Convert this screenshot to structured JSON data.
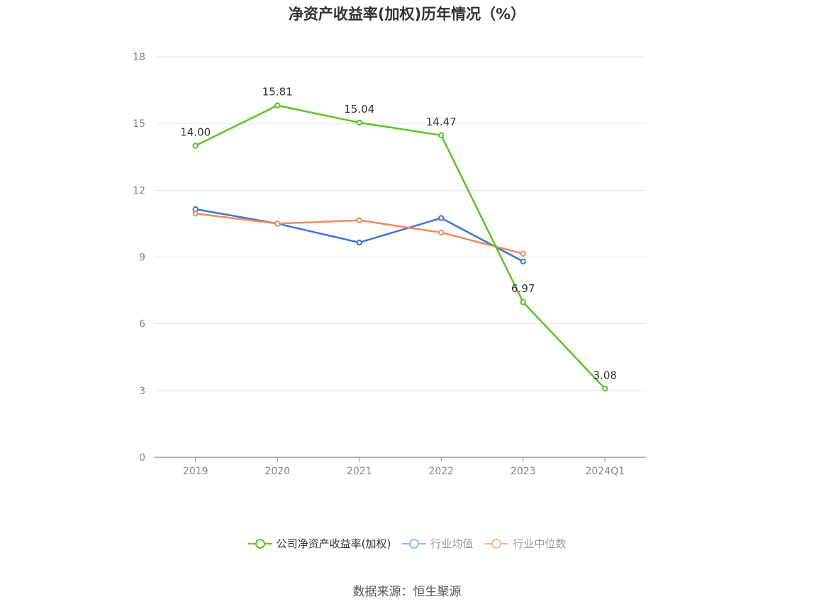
{
  "chart_data": {
    "type": "line",
    "title": "净资产收益率(加权)历年情况（%）",
    "categories": [
      "2019",
      "2020",
      "2021",
      "2022",
      "2023",
      "2024Q1"
    ],
    "ylim": [
      0,
      18
    ],
    "yticks": [
      0,
      3,
      6,
      9,
      12,
      15,
      18
    ],
    "grid": true,
    "legend_position": "bottom",
    "series": [
      {
        "name": "公司净资产收益率(加权)",
        "color": "#5bc226",
        "values": [
          14.0,
          15.81,
          15.04,
          14.47,
          6.97,
          3.08
        ],
        "labels": [
          "14.00",
          "15.81",
          "15.04",
          "14.47",
          "6.97",
          "3.08"
        ]
      },
      {
        "name": "行业均值",
        "color": "#3e74d6",
        "values": [
          11.15,
          10.5,
          9.65,
          10.75,
          8.8,
          null
        ]
      },
      {
        "name": "行业中位数",
        "color": "#f08a5a",
        "values": [
          10.95,
          10.5,
          10.65,
          10.1,
          9.15,
          null
        ]
      }
    ]
  },
  "legend": {
    "items": [
      {
        "label": "公司净资产收益率(加权)",
        "color": "#5bc226",
        "text_color": "#333333",
        "line_color": "#5bc226"
      },
      {
        "label": "行业均值",
        "color": "#3e74d6",
        "text_color": "#999999",
        "line_color": "#9db9ec"
      },
      {
        "label": "行业中位数",
        "color": "#f08a5a",
        "text_color": "#999999",
        "line_color": "#f6b89b"
      }
    ]
  },
  "source": "数据来源：恒生聚源"
}
